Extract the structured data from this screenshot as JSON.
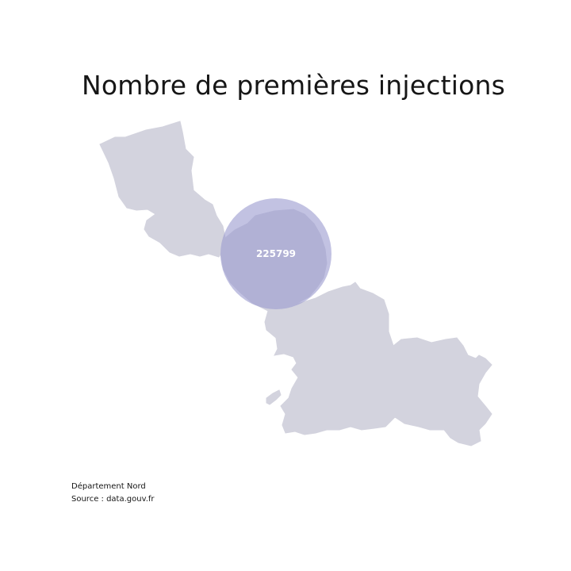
{
  "title": "Nombre de premières injections",
  "map": {
    "region_color": "#d3d3de",
    "bubble_color": "#9c9cd0",
    "bubble_label_color": "#ffffff",
    "bubble": {
      "value": "225799"
    }
  },
  "footer": {
    "line1": "Département Nord",
    "line2": "Source : data.gouv.fr"
  }
}
